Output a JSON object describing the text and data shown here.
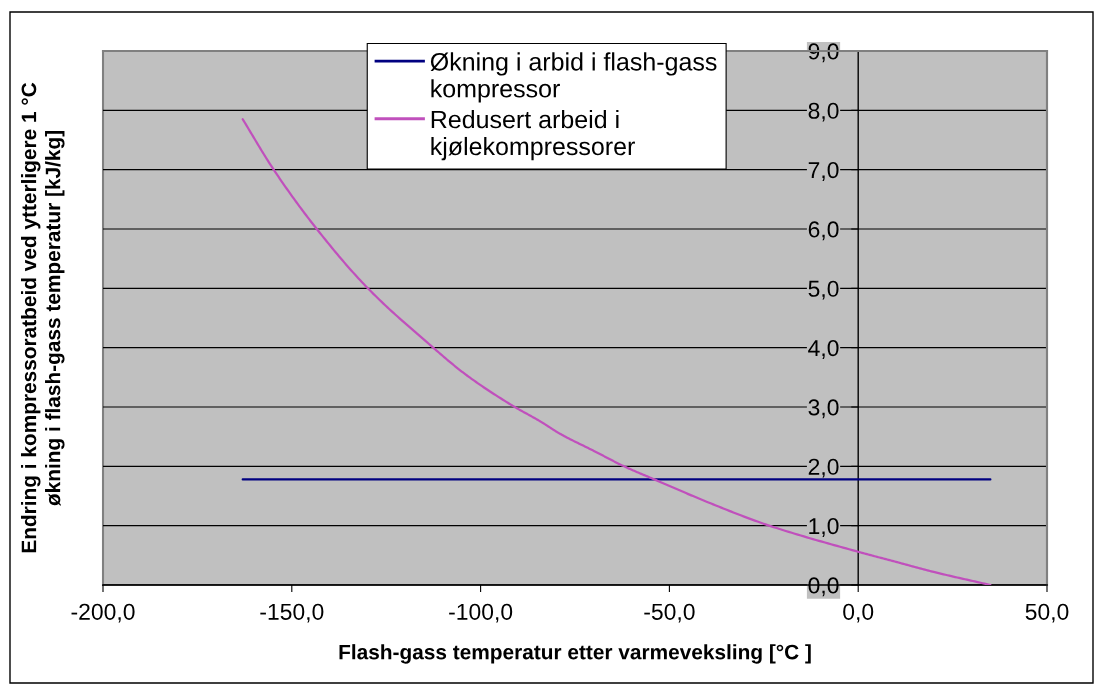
{
  "chart_data": {
    "type": "line",
    "xlabel": "Flash-gass temperatur etter varmeveksling [°C ]",
    "ylabel": "Endring i kompressoratbeid ved ytterligere 1 °C\nøkning i flash-gass temperatur [kJ/kg]",
    "xlim": [
      -200,
      50
    ],
    "ylim": [
      0,
      9
    ],
    "xticks": [
      {
        "value": -200,
        "label": "-200,0"
      },
      {
        "value": -150,
        "label": "-150,0"
      },
      {
        "value": -100,
        "label": "-100,0"
      },
      {
        "value": -50,
        "label": "-50,0"
      },
      {
        "value": 0,
        "label": "0,0"
      },
      {
        "value": 50,
        "label": "50,0"
      }
    ],
    "yticks": [
      {
        "value": 0,
        "label": "0,0"
      },
      {
        "value": 1,
        "label": "1,0"
      },
      {
        "value": 2,
        "label": "2,0"
      },
      {
        "value": 3,
        "label": "3,0"
      },
      {
        "value": 4,
        "label": "4,0"
      },
      {
        "value": 5,
        "label": "5,0"
      },
      {
        "value": 6,
        "label": "6,0"
      },
      {
        "value": 7,
        "label": "7,0"
      },
      {
        "value": 8,
        "label": "8,0"
      },
      {
        "value": 9,
        "label": "9,0"
      }
    ],
    "grid": "y",
    "legend": "top",
    "series": [
      {
        "name": "Økning i arbid i flash-gass\nkompressor",
        "color": "#000080",
        "x": [
          -163,
          35
        ],
        "values": [
          1.78,
          1.78
        ]
      },
      {
        "name": "Redusert arbeid i\nkjølekompressorer",
        "color": "#c050bc",
        "x": [
          -163,
          -155,
          -144,
          -130,
          -114,
          -104,
          -92,
          -84,
          -79,
          -70,
          -62,
          -54,
          -40,
          -24,
          0,
          10,
          20,
          35
        ],
        "values": [
          7.85,
          7.02,
          6.05,
          5.01,
          4.08,
          3.55,
          3.04,
          2.75,
          2.55,
          2.26,
          2.0,
          1.78,
          1.4,
          1.01,
          0.56,
          0.39,
          0.22,
          0.0
        ]
      }
    ]
  }
}
